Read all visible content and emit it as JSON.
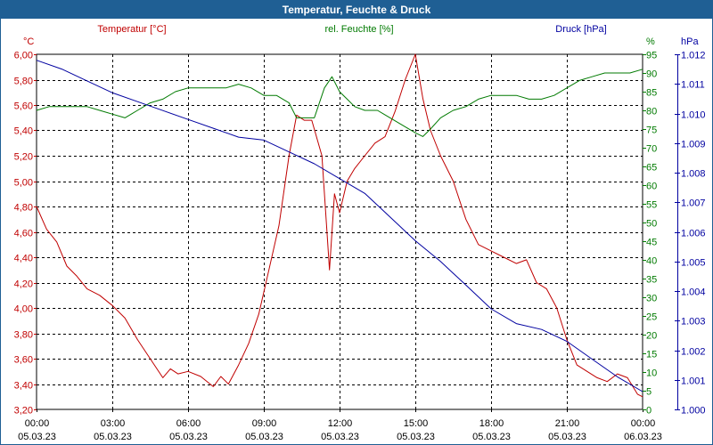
{
  "window": {
    "title": "Temperatur, Feuchte & Druck"
  },
  "colors": {
    "temperature": "#c00000",
    "humidity": "#007a00",
    "pressure": "#0000a0",
    "grid": "#000000",
    "title_bg": "#1f5f94"
  },
  "chart_data": {
    "type": "line",
    "title": "Temperatur, Feuchte & Druck",
    "legend": [
      "Temperatur [°C]",
      "rel. Feuchte [%]",
      "Druck [hPa]"
    ],
    "axes": {
      "temperature": {
        "unit": "°C",
        "min": 3.2,
        "max": 6.0,
        "ticks": [
          "6,00",
          "5,80",
          "5,60",
          "5,40",
          "5,20",
          "5,00",
          "4,80",
          "4,60",
          "4,40",
          "4,20",
          "4,00",
          "3,80",
          "3,60",
          "3,40",
          "3,20"
        ]
      },
      "humidity": {
        "unit": "%",
        "min": 0,
        "max": 95,
        "ticks": [
          "95",
          "90",
          "85",
          "80",
          "75",
          "70",
          "65",
          "60",
          "55",
          "50",
          "45",
          "40",
          "35",
          "30",
          "25",
          "20",
          "15",
          "10",
          "5",
          "0"
        ]
      },
      "pressure": {
        "unit": "hPa",
        "min": 1000.0,
        "max": 1012.0,
        "ticks": [
          "1.012",
          "1.011",
          "1.010",
          "1.009",
          "1.008",
          "1.007",
          "1.006",
          "1.005",
          "1.004",
          "1.003",
          "1.002",
          "1.001",
          "1.000"
        ]
      }
    },
    "x_ticks": [
      {
        "time": "00:00",
        "date": "05.03.23"
      },
      {
        "time": "03:00",
        "date": "05.03.23"
      },
      {
        "time": "06:00",
        "date": "05.03.23"
      },
      {
        "time": "09:00",
        "date": "05.03.23"
      },
      {
        "time": "12:00",
        "date": "05.03.23"
      },
      {
        "time": "15:00",
        "date": "05.03.23"
      },
      {
        "time": "18:00",
        "date": "05.03.23"
      },
      {
        "time": "21:00",
        "date": "05.03.23"
      },
      {
        "time": "00:00",
        "date": "06.03.23"
      }
    ],
    "x_range_hours": [
      0,
      24
    ],
    "series": [
      {
        "name": "Temperatur [°C]",
        "axis": "temperature",
        "x": [
          0,
          0.4,
          0.8,
          1.2,
          1.6,
          2,
          2.5,
          3,
          3.5,
          4,
          4.5,
          5,
          5.3,
          5.6,
          6,
          6.5,
          7,
          7.3,
          7.6,
          8,
          8.4,
          8.8,
          9.2,
          9.6,
          10,
          10.3,
          10.6,
          10.9,
          11.3,
          11.6,
          11.8,
          12,
          12.3,
          12.6,
          13,
          13.4,
          13.8,
          14.2,
          14.6,
          15,
          15.3,
          15.6,
          16,
          16.5,
          17,
          17.5,
          18,
          18.5,
          19,
          19.4,
          19.8,
          20.2,
          20.6,
          21,
          21.4,
          21.8,
          22.2,
          22.6,
          23,
          23.4,
          23.8,
          24
        ],
        "values": [
          4.8,
          4.62,
          4.52,
          4.33,
          4.25,
          4.15,
          4.1,
          4.02,
          3.92,
          3.75,
          3.6,
          3.45,
          3.52,
          3.48,
          3.5,
          3.46,
          3.38,
          3.46,
          3.4,
          3.55,
          3.72,
          3.95,
          4.3,
          4.65,
          5.2,
          5.52,
          5.48,
          5.48,
          5.2,
          4.3,
          4.9,
          4.75,
          5.0,
          5.1,
          5.2,
          5.3,
          5.35,
          5.55,
          5.8,
          6.0,
          5.65,
          5.4,
          5.2,
          5.0,
          4.7,
          4.5,
          4.45,
          4.4,
          4.35,
          4.38,
          4.2,
          4.15,
          4.0,
          3.75,
          3.55,
          3.5,
          3.45,
          3.42,
          3.48,
          3.45,
          3.32,
          3.3
        ]
      },
      {
        "name": "rel. Feuchte [%]",
        "axis": "humidity",
        "x": [
          0,
          0.5,
          1,
          1.5,
          2,
          2.5,
          3,
          3.5,
          4,
          4.5,
          5,
          5.5,
          6,
          6.5,
          7,
          7.5,
          8,
          8.5,
          9,
          9.5,
          10,
          10.3,
          10.6,
          11,
          11.4,
          11.7,
          12,
          12.3,
          12.6,
          13,
          13.5,
          14,
          14.5,
          15,
          15.3,
          15.6,
          16,
          16.5,
          17,
          17.5,
          18,
          18.5,
          19,
          19.5,
          20,
          20.5,
          21,
          21.5,
          22,
          22.5,
          23,
          23.5,
          24
        ],
        "values": [
          80,
          81,
          81,
          81,
          81,
          80,
          79,
          78,
          80,
          82,
          83,
          85,
          86,
          86,
          86,
          86,
          87,
          86,
          84,
          84,
          82,
          78,
          78,
          78,
          86,
          89,
          85,
          83,
          81,
          80,
          80,
          78,
          76,
          74,
          73,
          75,
          78,
          80,
          81,
          83,
          84,
          84,
          84,
          83,
          83,
          84,
          86,
          88,
          89,
          90,
          90,
          90,
          91
        ]
      },
      {
        "name": "Druck [hPa]",
        "axis": "pressure",
        "x": [
          0,
          1,
          2,
          3,
          4,
          5,
          6,
          7,
          8,
          9,
          10,
          11,
          12,
          13,
          14,
          15,
          16,
          17,
          18,
          19,
          20,
          21,
          22,
          23,
          24
        ],
        "values": [
          1011.8,
          1011.5,
          1011.1,
          1010.7,
          1010.4,
          1010.1,
          1009.8,
          1009.5,
          1009.2,
          1009.1,
          1008.7,
          1008.3,
          1007.8,
          1007.3,
          1006.5,
          1005.7,
          1005.0,
          1004.2,
          1003.4,
          1002.9,
          1002.7,
          1002.3,
          1001.7,
          1001.1,
          1000.6
        ]
      }
    ]
  }
}
